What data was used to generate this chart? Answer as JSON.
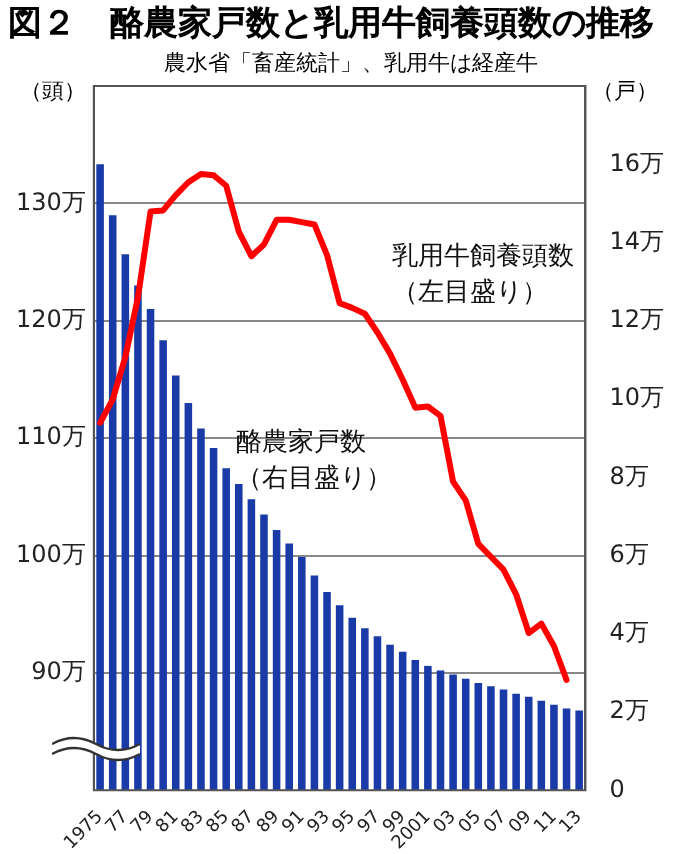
{
  "chart_data": {
    "type": "bar",
    "title": "図２　酪農家戸数と乳用牛飼養頭数の推移",
    "subtitle": "農水省「畜産統計」、乳用牛は経産牛",
    "ylabel": "（頭）",
    "y2label": "（戸）",
    "categories": [
      "1975",
      null,
      "77",
      null,
      "79",
      null,
      "81",
      null,
      "83",
      null,
      "85",
      null,
      "87",
      null,
      "89",
      null,
      "91",
      null,
      "93",
      null,
      "95",
      null,
      "97",
      null,
      "99",
      null,
      "2001",
      null,
      "03",
      null,
      "05",
      null,
      "07",
      null,
      "09",
      null,
      "11",
      null,
      "13"
    ],
    "series": [
      {
        "name": "酪農家戸数（右目盛り）",
        "axis": "y2",
        "color": "#1a3aa8",
        "values": [
          16.0,
          14.7,
          13.7,
          12.9,
          12.3,
          11.5,
          10.6,
          9.9,
          9.25,
          8.75,
          8.23,
          7.83,
          7.44,
          7.05,
          6.65,
          6.31,
          5.96,
          5.49,
          5.07,
          4.73,
          4.41,
          4.14,
          3.94,
          3.72,
          3.54,
          3.33,
          3.18,
          3.06,
          2.96,
          2.85,
          2.74,
          2.66,
          2.58,
          2.47,
          2.39,
          2.29,
          2.19,
          2.09,
          2.04
        ]
      },
      {
        "name": "乳用牛飼養頭数（左目盛り）",
        "type": "line",
        "axis": "y",
        "color": "#ff0000",
        "values": [
          111.3,
          113.3,
          116.9,
          122.0,
          129.3,
          129.4,
          130.7,
          131.8,
          132.5,
          132.4,
          131.5,
          127.6,
          125.5,
          126.5,
          128.6,
          128.6,
          128.4,
          128.2,
          125.6,
          121.5,
          121.1,
          120.6,
          119.0,
          117.2,
          115.0,
          112.6,
          112.7,
          111.9,
          106.3,
          104.7,
          101.0,
          99.9,
          98.8,
          96.7,
          93.4,
          94.2,
          92.3,
          89.4,
          null
        ]
      }
    ],
    "ylim": [
      80,
      140
    ],
    "yticks": [
      {
        "value": 90,
        "label": "90万"
      },
      {
        "value": 100,
        "label": "100万"
      },
      {
        "value": 110,
        "label": "110万"
      },
      {
        "value": 120,
        "label": "120万"
      },
      {
        "value": 130,
        "label": "130万"
      }
    ],
    "y2lim": [
      0,
      18
    ],
    "y2ticks": [
      0,
      {
        "value": 2,
        "label": "2万"
      },
      {
        "value": 4,
        "label": "4万"
      },
      {
        "value": 6,
        "label": "6万"
      },
      {
        "value": 8,
        "label": "8万"
      },
      {
        "value": 10,
        "label": "10万"
      },
      {
        "value": 12,
        "label": "12万"
      },
      {
        "value": 14,
        "label": "14万"
      },
      {
        "value": 16,
        "label": "16万"
      }
    ],
    "grid": "y",
    "legend": false,
    "marker": "none",
    "line_style": "solid"
  }
}
